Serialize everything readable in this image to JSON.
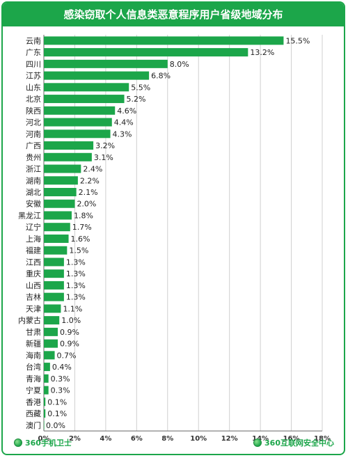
{
  "header": {
    "title": "感染窃取个人信息类恶意程序用户省级地域分布"
  },
  "footer": {
    "left_brand": "360手机卫士",
    "right_brand": "360互联网安全中心"
  },
  "colors": {
    "accent": "#1ca64a",
    "bar": "#1ca64a",
    "grid": "#cfcfcf"
  },
  "chart_data": {
    "type": "bar",
    "orientation": "horizontal",
    "title": "感染窃取个人信息类恶意程序用户省级地域分布",
    "categories": [
      "云南",
      "广东",
      "四川",
      "江苏",
      "山东",
      "北京",
      "陕西",
      "河北",
      "河南",
      "广西",
      "贵州",
      "浙江",
      "湖南",
      "湖北",
      "安徽",
      "黑龙江",
      "辽宁",
      "上海",
      "福建",
      "江西",
      "重庆",
      "山西",
      "吉林",
      "天津",
      "内蒙古",
      "甘肃",
      "新疆",
      "海南",
      "台湾",
      "青海",
      "宁夏",
      "香港",
      "西藏",
      "澳门"
    ],
    "values": [
      15.5,
      13.2,
      8.0,
      6.8,
      5.5,
      5.2,
      4.6,
      4.4,
      4.3,
      3.2,
      3.1,
      2.4,
      2.2,
      2.1,
      2.0,
      1.8,
      1.7,
      1.6,
      1.5,
      1.3,
      1.3,
      1.3,
      1.3,
      1.1,
      1.0,
      0.9,
      0.9,
      0.7,
      0.4,
      0.3,
      0.3,
      0.1,
      0.1,
      0.0
    ],
    "value_labels": [
      "15.5%",
      "13.2%",
      "8.0%",
      "6.8%",
      "5.5%",
      "5.2%",
      "4.6%",
      "4.4%",
      "4.3%",
      "3.2%",
      "3.1%",
      "2.4%",
      "2.2%",
      "2.1%",
      "2.0%",
      "1.8%",
      "1.7%",
      "1.6%",
      "1.5%",
      "1.3%",
      "1.3%",
      "1.3%",
      "1.3%",
      "1.1%",
      "1.0%",
      "0.9%",
      "0.9%",
      "0.7%",
      "0.4%",
      "0.3%",
      "0.3%",
      "0.1%",
      "0.1%",
      "0.0%"
    ],
    "xlim": [
      0,
      18
    ],
    "x_ticks": [
      0,
      2,
      4,
      6,
      8,
      10,
      12,
      14,
      16,
      18
    ],
    "x_tick_labels": [
      "0%",
      "2%",
      "4%",
      "6%",
      "8%",
      "10%",
      "12%",
      "14%",
      "16%",
      "18%"
    ],
    "xlabel": "",
    "ylabel": "",
    "grid": true,
    "legend": "none"
  }
}
